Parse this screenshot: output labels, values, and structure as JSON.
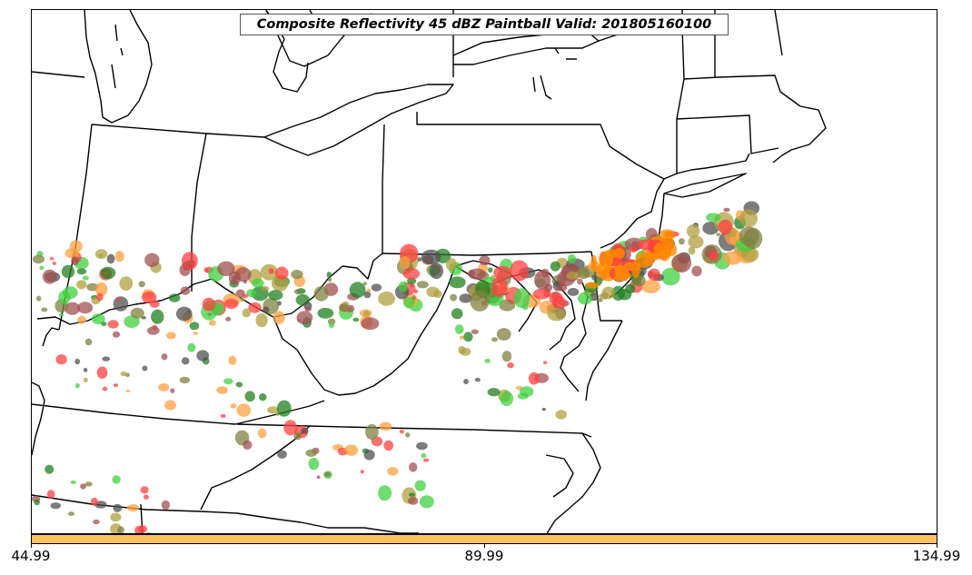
{
  "map": {
    "title": "Composite Reflectivity 45 dBZ Paintball Valid: 201805160100",
    "legend_colors": [
      "#ff4040",
      "#ffa040",
      "#40d040",
      "#208020",
      "#b0a040",
      "#808040",
      "#505050",
      "#a05050"
    ]
  },
  "colorbar": {
    "color": "#ffc060",
    "tick_labels": [
      "44.99",
      "89.99",
      "134.99"
    ]
  }
}
